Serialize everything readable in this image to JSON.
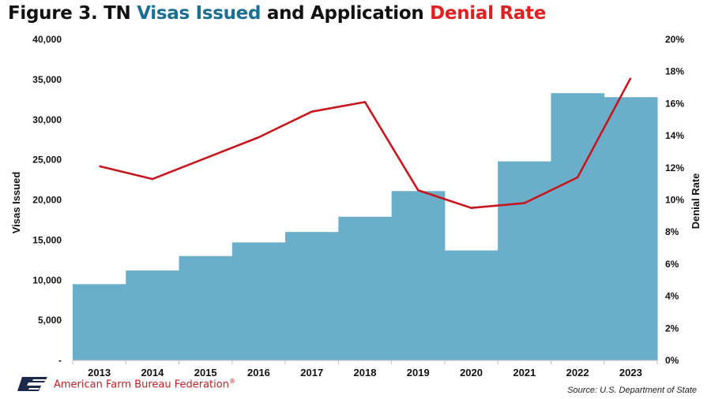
{
  "title": {
    "prefix": "Figure 3. TN ",
    "part1": "Visas Issued",
    "middle": " and Application ",
    "part2": "Denial Rate"
  },
  "colors": {
    "title_text": "#111111",
    "visas": "#1a6f93",
    "denial": "#e02020",
    "bars": "#6aaec9",
    "line": "#c8161d",
    "org": "#c41e24"
  },
  "chart_data": {
    "type": "bar",
    "categories": [
      "2013",
      "2014",
      "2015",
      "2016",
      "2017",
      "2018",
      "2019",
      "2020",
      "2021",
      "2022",
      "2023"
    ],
    "series": [
      {
        "name": "Visas Issued",
        "type": "bar",
        "axis": "left",
        "values": [
          9500,
          11200,
          13000,
          14700,
          16000,
          17900,
          21100,
          13700,
          24800,
          33300,
          32800
        ]
      },
      {
        "name": "Denial Rate",
        "type": "line",
        "axis": "right",
        "values": [
          12.1,
          11.3,
          12.6,
          13.9,
          15.5,
          16.1,
          10.6,
          9.5,
          9.8,
          11.4,
          17.6
        ]
      }
    ],
    "ylabel": "Visas Issued",
    "ylim": [
      0,
      40000
    ],
    "yticks": [
      "-",
      "5,000",
      "10,000",
      "15,000",
      "20,000",
      "25,000",
      "30,000",
      "35,000",
      "40,000"
    ],
    "y2label": "Denial Rate",
    "y2lim": [
      0,
      20
    ],
    "y2ticks": [
      "0%",
      "2%",
      "4%",
      "6%",
      "8%",
      "10%",
      "12%",
      "14%",
      "16%",
      "18%",
      "20%"
    ],
    "grid": false,
    "legend": "none"
  },
  "footer": {
    "org_name": "American Farm Bureau Federation",
    "registered": "®",
    "logo_text": "FB",
    "source": "Source: U.S. Department of State"
  }
}
